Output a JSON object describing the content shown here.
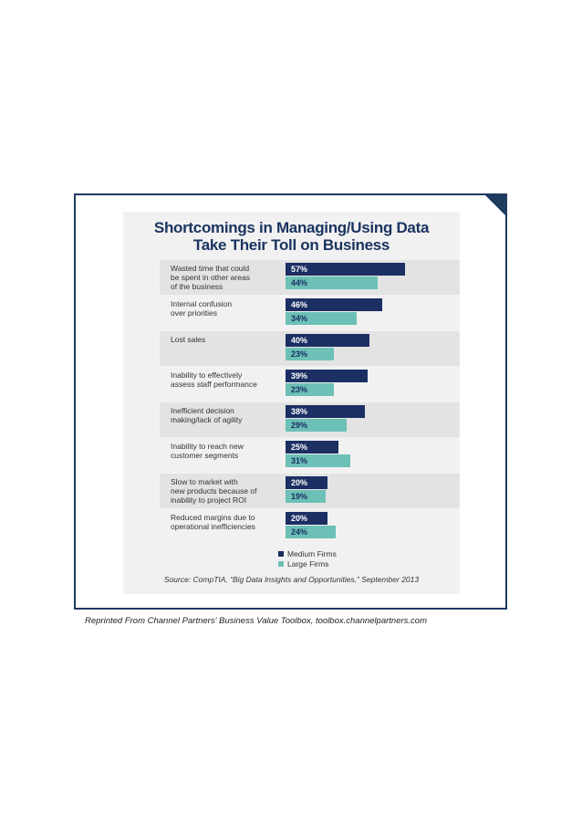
{
  "colors": {
    "medium": "#1b2f63",
    "large": "#6cc0b6",
    "title": "#1b3460",
    "frame": "#1f3a5f"
  },
  "chart_data": {
    "type": "bar",
    "orientation": "horizontal",
    "title": "Shortcomings in Managing/Using Data\nTake Their Toll on Business",
    "categories": [
      "Wasted time that could\nbe spent in other areas\nof the business",
      "Internal confusion\nover priorities",
      "Lost sales",
      "Inability to effectively\nassess staff performance",
      "Inefficient decision\nmaking/lack of agility",
      "Inability to reach new\ncustomer segments",
      "Slow to market with\nnew products because of\ninability to project ROI",
      "Reduced margins due to\noperational inefficiencies"
    ],
    "series": [
      {
        "name": "Medium Firms",
        "values": [
          57,
          46,
          40,
          39,
          38,
          25,
          20,
          20
        ]
      },
      {
        "name": "Large Firms",
        "values": [
          44,
          34,
          23,
          23,
          29,
          31,
          19,
          24
        ]
      }
    ],
    "value_suffix": "%",
    "xlim": [
      0,
      60
    ],
    "grid": false,
    "legend_position": "bottom-right"
  },
  "source": "Source: CompTIA, “Big Data Insights and Opportunities,” September 2013",
  "reprint": "Reprinted From Channel Partners' Business Value Toolbox, toolbox.channelpartners.com"
}
